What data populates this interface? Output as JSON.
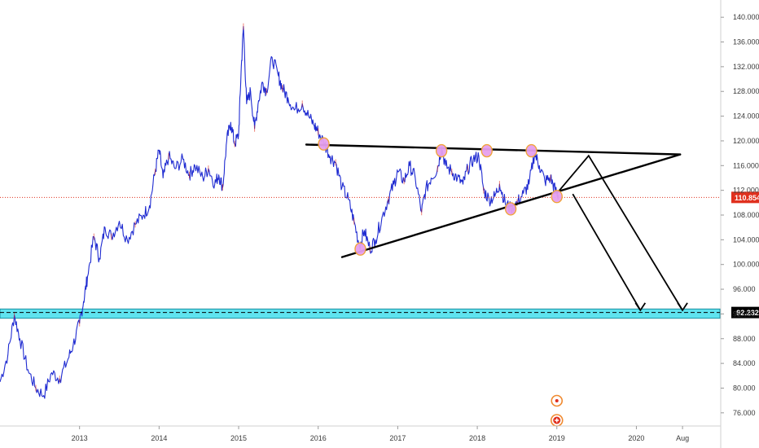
{
  "chart_data": {
    "type": "line",
    "title": "",
    "xlabel": "",
    "ylabel": "",
    "ylim": [
      74,
      142
    ],
    "y_ticks": [
      "140.000",
      "136.000",
      "132.000",
      "128.000",
      "124.000",
      "120.000",
      "116.000",
      "112.000",
      "108.000",
      "104.000",
      "100.000",
      "96.000",
      "92.000",
      "88.000",
      "84.000",
      "80.000",
      "76.000"
    ],
    "x_ticks": [
      {
        "label": "2013",
        "t": 2013.0
      },
      {
        "label": "2014",
        "t": 2014.0
      },
      {
        "label": "2015",
        "t": 2015.0
      },
      {
        "label": "2016",
        "t": 2016.0
      },
      {
        "label": "2017",
        "t": 2017.0
      },
      {
        "label": "2018",
        "t": 2018.0
      },
      {
        "label": "2019",
        "t": 2019.0
      },
      {
        "label": "2020",
        "t": 2020.0
      },
      {
        "label": "Aug",
        "t": 2020.58
      }
    ],
    "xlim": [
      2012.0,
      2021.05
    ],
    "series": [
      {
        "color": "#1f2bd1",
        "points": [
          [
            2012.0,
            81.0
          ],
          [
            2012.1,
            85.5
          ],
          [
            2012.18,
            91.8
          ],
          [
            2012.25,
            88.0
          ],
          [
            2012.35,
            83.0
          ],
          [
            2012.45,
            80.0
          ],
          [
            2012.55,
            78.8
          ],
          [
            2012.65,
            82.5
          ],
          [
            2012.75,
            81.5
          ],
          [
            2012.85,
            84.5
          ],
          [
            2012.92,
            87.0
          ],
          [
            2013.0,
            90.5
          ],
          [
            2013.05,
            94.0
          ],
          [
            2013.1,
            98.0
          ],
          [
            2013.18,
            104.5
          ],
          [
            2013.25,
            101.0
          ],
          [
            2013.32,
            106.0
          ],
          [
            2013.4,
            104.5
          ],
          [
            2013.5,
            107.0
          ],
          [
            2013.6,
            104.0
          ],
          [
            2013.7,
            106.5
          ],
          [
            2013.8,
            108.0
          ],
          [
            2013.88,
            109.5
          ],
          [
            2013.95,
            115.0
          ],
          [
            2014.0,
            118.5
          ],
          [
            2014.05,
            114.0
          ],
          [
            2014.12,
            117.5
          ],
          [
            2014.2,
            115.5
          ],
          [
            2014.3,
            117.0
          ],
          [
            2014.38,
            114.5
          ],
          [
            2014.45,
            116.0
          ],
          [
            2014.55,
            114.0
          ],
          [
            2014.62,
            115.5
          ],
          [
            2014.7,
            113.0
          ],
          [
            2014.75,
            114.5
          ],
          [
            2014.8,
            112.5
          ],
          [
            2014.85,
            120.0
          ],
          [
            2014.9,
            123.0
          ],
          [
            2014.95,
            119.5
          ],
          [
            2015.0,
            121.0
          ],
          [
            2015.03,
            131.0
          ],
          [
            2015.06,
            138.5
          ],
          [
            2015.1,
            126.0
          ],
          [
            2015.15,
            128.0
          ],
          [
            2015.2,
            122.0
          ],
          [
            2015.25,
            126.5
          ],
          [
            2015.3,
            129.5
          ],
          [
            2015.35,
            128.0
          ],
          [
            2015.42,
            133.5
          ],
          [
            2015.5,
            130.5
          ],
          [
            2015.55,
            128.5
          ],
          [
            2015.62,
            127.0
          ],
          [
            2015.7,
            125.0
          ],
          [
            2015.8,
            126.0
          ],
          [
            2015.88,
            124.0
          ],
          [
            2015.95,
            122.5
          ],
          [
            2016.0,
            121.5
          ],
          [
            2016.08,
            119.5
          ],
          [
            2016.15,
            117.5
          ],
          [
            2016.22,
            116.5
          ],
          [
            2016.3,
            112.5
          ],
          [
            2016.38,
            110.5
          ],
          [
            2016.45,
            107.0
          ],
          [
            2016.52,
            103.0
          ],
          [
            2016.58,
            105.5
          ],
          [
            2016.65,
            102.5
          ],
          [
            2016.72,
            104.0
          ],
          [
            2016.8,
            107.5
          ],
          [
            2016.88,
            110.5
          ],
          [
            2016.95,
            113.0
          ],
          [
            2017.0,
            115.0
          ],
          [
            2017.08,
            113.5
          ],
          [
            2017.15,
            116.0
          ],
          [
            2017.22,
            114.0
          ],
          [
            2017.3,
            108.5
          ],
          [
            2017.35,
            112.0
          ],
          [
            2017.42,
            114.0
          ],
          [
            2017.5,
            115.5
          ],
          [
            2017.55,
            119.0
          ],
          [
            2017.6,
            116.0
          ],
          [
            2017.68,
            115.0
          ],
          [
            2017.75,
            114.0
          ],
          [
            2017.82,
            113.0
          ],
          [
            2017.88,
            115.5
          ],
          [
            2017.95,
            117.0
          ],
          [
            2018.02,
            117.5
          ],
          [
            2018.08,
            112.0
          ],
          [
            2018.15,
            110.5
          ],
          [
            2018.22,
            111.0
          ],
          [
            2018.28,
            113.0
          ],
          [
            2018.35,
            110.0
          ],
          [
            2018.42,
            109.0
          ],
          [
            2018.5,
            110.0
          ],
          [
            2018.58,
            111.5
          ],
          [
            2018.65,
            113.0
          ],
          [
            2018.72,
            118.0
          ],
          [
            2018.78,
            116.0
          ],
          [
            2018.85,
            113.5
          ],
          [
            2018.92,
            114.0
          ],
          [
            2018.98,
            112.0
          ],
          [
            2019.02,
            111.2
          ]
        ]
      }
    ],
    "current_price": "110.854",
    "target_price": "92.232",
    "support_zone": [
      91.3,
      92.8
    ],
    "trendlines": [
      [
        [
          2015.85,
          119.4
        ],
        [
          2021.7,
          117.8
        ]
      ],
      [
        [
          2016.3,
          101.2
        ],
        [
          2021.7,
          117.8
        ]
      ],
      [
        [
          2016.92,
          110.9
        ],
        [
          2016.92,
          110.9
        ]
      ]
    ],
    "projection_arrows": [
      [
        [
          2019.0,
          111.5
        ],
        [
          2019.65,
          117.7
        ],
        [
          2020.05,
          92.2
        ]
      ],
      [
        [
          2019.65,
          117.7
        ],
        [
          2020.58,
          92.2
        ]
      ],
      [
        [
          2019.15,
          111.6
        ],
        [
          2020.05,
          92.2
        ]
      ]
    ],
    "highlight_points": [
      {
        "t": 2016.07,
        "v": 119.5
      },
      {
        "t": 2016.53,
        "v": 102.5
      },
      {
        "t": 2017.55,
        "v": 118.4
      },
      {
        "t": 2018.12,
        "v": 118.4
      },
      {
        "t": 2018.42,
        "v": 109.0
      },
      {
        "t": 2018.68,
        "v": 118.4
      },
      {
        "t": 2019.0,
        "v": 111.0
      }
    ],
    "colors": {
      "price": "#1f2bd1",
      "current_line": "#e0301e",
      "current_badge": "#e0301e",
      "target_badge": "#000000",
      "zone_fill": "#5fe3ef",
      "highlight_fill": "#e6a0ee",
      "highlight_stroke": "#f0a030",
      "trendline": "#000000"
    },
    "event_icons": [
      "flag-event-icon",
      "plus-event-icon"
    ]
  }
}
